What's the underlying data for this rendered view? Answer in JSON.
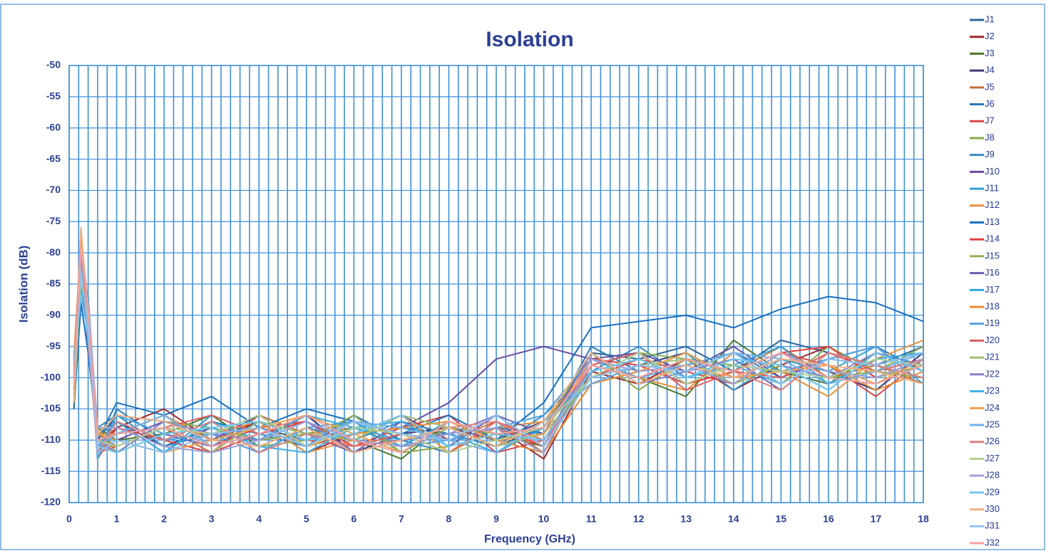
{
  "chart_data": {
    "type": "line",
    "title": "Isolation",
    "x_label": "Frequency (GHz)",
    "y_label": "Isolation (dB)",
    "xlim": [
      0,
      18
    ],
    "xticks": [
      0,
      1,
      2,
      3,
      4,
      5,
      6,
      7,
      8,
      9,
      10,
      11,
      12,
      13,
      14,
      15,
      16,
      17,
      18
    ],
    "x_grid_step": 0.2,
    "ylim": [
      -120,
      -50
    ],
    "yticks": [
      -120,
      -115,
      -110,
      -105,
      -100,
      -95,
      -90,
      -85,
      -80,
      -75,
      -70,
      -65,
      -60,
      -55,
      -50
    ],
    "grid": true,
    "legend": "right",
    "x": [
      0.1,
      0.25,
      0.4,
      0.6,
      1,
      2,
      3,
      4,
      5,
      6,
      7,
      8,
      9,
      10,
      11,
      12,
      13,
      14,
      15,
      16,
      17,
      18
    ],
    "series": [
      {
        "name": "J1",
        "color": "#2a6496",
        "values": [
          -105,
          -80,
          -90,
          -110,
          -106,
          -107,
          -109,
          -108,
          -110,
          -107,
          -108,
          -109,
          -111,
          -108,
          -96,
          -97,
          -95,
          -99,
          -94,
          -96,
          -98,
          -95
        ]
      },
      {
        "name": "J2",
        "color": "#a0282c",
        "values": [
          -97,
          -78,
          -92,
          -111,
          -108,
          -105,
          -110,
          -107,
          -112,
          -109,
          -106,
          -110,
          -108,
          -113,
          -99,
          -101,
          -97,
          -102,
          -98,
          -95,
          -100,
          -97
        ]
      },
      {
        "name": "J3",
        "color": "#4e7a2a",
        "values": [
          -100,
          -82,
          -95,
          -108,
          -110,
          -109,
          -106,
          -111,
          -108,
          -110,
          -113,
          -107,
          -109,
          -111,
          -97,
          -100,
          -103,
          -94,
          -99,
          -101,
          -96,
          -99
        ]
      },
      {
        "name": "J4",
        "color": "#3a3a7a",
        "values": [
          -102,
          -85,
          -93,
          -112,
          -107,
          -111,
          -108,
          -110,
          -106,
          -112,
          -109,
          -108,
          -110,
          -107,
          -101,
          -98,
          -96,
          -100,
          -97,
          -99,
          -102,
          -96
        ]
      },
      {
        "name": "J5",
        "color": "#c0713a",
        "values": [
          -98,
          -79,
          -88,
          -109,
          -111,
          -108,
          -112,
          -106,
          -109,
          -108,
          -111,
          -110,
          -107,
          -112,
          -98,
          -96,
          -101,
          -99,
          -95,
          -100,
          -98,
          -101
        ]
      },
      {
        "name": "J6",
        "color": "#2a7ab5",
        "values": [
          -104,
          -81,
          -91,
          -113,
          -105,
          -110,
          -107,
          -109,
          -111,
          -106,
          -110,
          -112,
          -108,
          -109,
          -95,
          -99,
          -98,
          -96,
          -100,
          -97,
          -95,
          -99
        ]
      },
      {
        "name": "J7",
        "color": "#d94545",
        "values": [
          -99,
          -77,
          -89,
          -110,
          -109,
          -106,
          -111,
          -108,
          -107,
          -111,
          -108,
          -106,
          -112,
          -110,
          -100,
          -97,
          -99,
          -101,
          -96,
          -98,
          -103,
          -97
        ]
      },
      {
        "name": "J8",
        "color": "#8aaa4a",
        "values": [
          -101,
          -83,
          -94,
          -111,
          -112,
          -109,
          -108,
          -110,
          -109,
          -107,
          -112,
          -111,
          -109,
          -108,
          -96,
          -102,
          -97,
          -98,
          -101,
          -95,
          -99,
          -100
        ]
      },
      {
        "name": "J9",
        "color": "#3a8ac0",
        "values": [
          -96,
          -86,
          -90,
          -108,
          -106,
          -111,
          -109,
          -112,
          -108,
          -110,
          -107,
          -109,
          -111,
          -106,
          -99,
          -95,
          -100,
          -97,
          -98,
          -102,
          -96,
          -98
        ]
      },
      {
        "name": "J10",
        "color": "#6a4aa0",
        "values": [
          -103,
          -76,
          -92,
          -112,
          -110,
          -107,
          -110,
          -106,
          -111,
          -109,
          -108,
          -104,
          -97,
          -95,
          -97,
          -96,
          -99,
          -95,
          -100,
          -97,
          -98,
          -96
        ]
      },
      {
        "name": "J11",
        "color": "#30a0d0",
        "values": [
          -100,
          -84,
          -87,
          -109,
          -107,
          -112,
          -106,
          -109,
          -110,
          -108,
          -111,
          -107,
          -110,
          -112,
          -101,
          -99,
          -96,
          -102,
          -97,
          -99,
          -95,
          -101
        ]
      },
      {
        "name": "J12",
        "color": "#e8903a",
        "values": [
          -97,
          -80,
          -93,
          -111,
          -111,
          -108,
          -109,
          -107,
          -112,
          -110,
          -106,
          -112,
          -108,
          -107,
          -98,
          -100,
          -102,
          -96,
          -99,
          -103,
          -97,
          -94
        ]
      },
      {
        "name": "J13",
        "color": "#1a70c0",
        "values": [
          -105,
          -88,
          -96,
          -110,
          -104,
          -106,
          -103,
          -108,
          -105,
          -107,
          -109,
          -106,
          -110,
          -104,
          -92,
          -91,
          -90,
          -92,
          -89,
          -87,
          -88,
          -91
        ]
      },
      {
        "name": "J14",
        "color": "#e04040",
        "values": [
          -101,
          -79,
          -91,
          -113,
          -108,
          -110,
          -112,
          -109,
          -107,
          -111,
          -109,
          -110,
          -108,
          -111,
          -97,
          -98,
          -101,
          -99,
          -96,
          -95,
          -100,
          -98
        ]
      },
      {
        "name": "J15",
        "color": "#90b050",
        "values": [
          -99,
          -82,
          -89,
          -108,
          -112,
          -107,
          -108,
          -111,
          -110,
          -106,
          -112,
          -108,
          -109,
          -110,
          -100,
          -96,
          -97,
          -101,
          -98,
          -100,
          -99,
          -95
        ]
      },
      {
        "name": "J16",
        "color": "#6a60b0",
        "values": [
          -102,
          -78,
          -94,
          -112,
          -106,
          -109,
          -111,
          -107,
          -109,
          -112,
          -107,
          -111,
          -106,
          -109,
          -96,
          -101,
          -99,
          -97,
          -102,
          -96,
          -98,
          -100
        ]
      },
      {
        "name": "J17",
        "color": "#30a8e0",
        "values": [
          -98,
          -85,
          -90,
          -110,
          -110,
          -112,
          -107,
          -110,
          -106,
          -108,
          -110,
          -109,
          -112,
          -108,
          -99,
          -97,
          -100,
          -98,
          -95,
          -101,
          -97,
          -96
        ]
      },
      {
        "name": "J18",
        "color": "#f08a30",
        "values": [
          -103,
          -77,
          -92,
          -109,
          -109,
          -106,
          -110,
          -108,
          -111,
          -109,
          -108,
          -107,
          -110,
          -112,
          -101,
          -99,
          -96,
          -100,
          -97,
          -98,
          -102,
          -99
        ]
      },
      {
        "name": "J19",
        "color": "#50a0e0",
        "values": [
          -100,
          -83,
          -88,
          -111,
          -107,
          -110,
          -109,
          -112,
          -108,
          -107,
          -111,
          -110,
          -108,
          -106,
          -97,
          -100,
          -98,
          -96,
          -99,
          -97,
          -95,
          -101
        ]
      },
      {
        "name": "J20",
        "color": "#e06060",
        "values": [
          -97,
          -80,
          -91,
          -112,
          -111,
          -108,
          -106,
          -109,
          -110,
          -111,
          -109,
          -112,
          -107,
          -110,
          -98,
          -96,
          -102,
          -99,
          -100,
          -96,
          -99,
          -97
        ]
      },
      {
        "name": "J21",
        "color": "#a0c070",
        "values": [
          -104,
          -84,
          -93,
          -108,
          -108,
          -111,
          -112,
          -107,
          -109,
          -110,
          -106,
          -108,
          -111,
          -109,
          -100,
          -98,
          -97,
          -101,
          -96,
          -99,
          -100,
          -98
        ]
      },
      {
        "name": "J22",
        "color": "#8880c8",
        "values": [
          -99,
          -81,
          -95,
          -110,
          -112,
          -107,
          -109,
          -110,
          -107,
          -112,
          -110,
          -109,
          -106,
          -111,
          -96,
          -101,
          -99,
          -97,
          -98,
          -100,
          -96,
          -99
        ]
      },
      {
        "name": "J23",
        "color": "#40b0e8",
        "values": [
          -101,
          -86,
          -89,
          -113,
          -106,
          -109,
          -108,
          -111,
          -112,
          -108,
          -107,
          -111,
          -109,
          -108,
          -99,
          -97,
          -100,
          -98,
          -101,
          -97,
          -98,
          -100
        ]
      },
      {
        "name": "J24",
        "color": "#f0a050",
        "values": [
          -96,
          -79,
          -92,
          -109,
          -110,
          -112,
          -110,
          -108,
          -106,
          -109,
          -112,
          -107,
          -110,
          -109,
          -97,
          -99,
          -96,
          -100,
          -99,
          -98,
          -101,
          -97
        ]
      },
      {
        "name": "J25",
        "color": "#70b0e8",
        "values": [
          -102,
          -82,
          -90,
          -111,
          -109,
          -106,
          -111,
          -109,
          -110,
          -107,
          -108,
          -110,
          -112,
          -107,
          -101,
          -98,
          -99,
          -96,
          -97,
          -101,
          -99,
          -96
        ]
      },
      {
        "name": "J26",
        "color": "#e08080",
        "values": [
          -98,
          -78,
          -94,
          -112,
          -107,
          -110,
          -107,
          -112,
          -109,
          -111,
          -110,
          -108,
          -107,
          -111,
          -98,
          -100,
          -97,
          -99,
          -102,
          -96,
          -98,
          -100
        ]
      },
      {
        "name": "J27",
        "color": "#b0d090",
        "values": [
          -103,
          -84,
          -91,
          -110,
          -111,
          -108,
          -109,
          -106,
          -111,
          -108,
          -109,
          -112,
          -110,
          -108,
          -100,
          -96,
          -101,
          -98,
          -99,
          -100,
          -97,
          -98
        ]
      },
      {
        "name": "J28",
        "color": "#a0a0d8",
        "values": [
          -100,
          -80,
          -88,
          -108,
          -108,
          -111,
          -112,
          -110,
          -107,
          -110,
          -111,
          -109,
          -108,
          -112,
          -97,
          -99,
          -98,
          -101,
          -96,
          -99,
          -100,
          -97
        ]
      },
      {
        "name": "J29",
        "color": "#70c8f0",
        "values": [
          -97,
          -87,
          -93,
          -111,
          -112,
          -109,
          -108,
          -107,
          -110,
          -109,
          -106,
          -111,
          -109,
          -110,
          -99,
          -97,
          -100,
          -97,
          -98,
          -102,
          -96,
          -99
        ]
      },
      {
        "name": "J30",
        "color": "#f0b080",
        "values": [
          -104,
          -76,
          -90,
          -109,
          -106,
          -107,
          -110,
          -111,
          -108,
          -112,
          -110,
          -108,
          -111,
          -107,
          -96,
          -101,
          -98,
          -100,
          -97,
          -98,
          -99,
          -101
        ]
      },
      {
        "name": "J31",
        "color": "#90c0f0",
        "values": [
          -99,
          -83,
          -92,
          -112,
          -110,
          -112,
          -109,
          -108,
          -111,
          -107,
          -109,
          -110,
          -106,
          -111,
          -100,
          -98,
          -99,
          -96,
          -101,
          -97,
          -98,
          -96
        ]
      },
      {
        "name": "J32",
        "color": "#f0a0a0",
        "values": [
          -101,
          -79,
          -89,
          -110,
          -109,
          -108,
          -111,
          -109,
          -106,
          -110,
          -112,
          -107,
          -109,
          -108,
          -98,
          -100,
          -97,
          -99,
          -96,
          -100,
          -101,
          -98
        ]
      }
    ]
  }
}
